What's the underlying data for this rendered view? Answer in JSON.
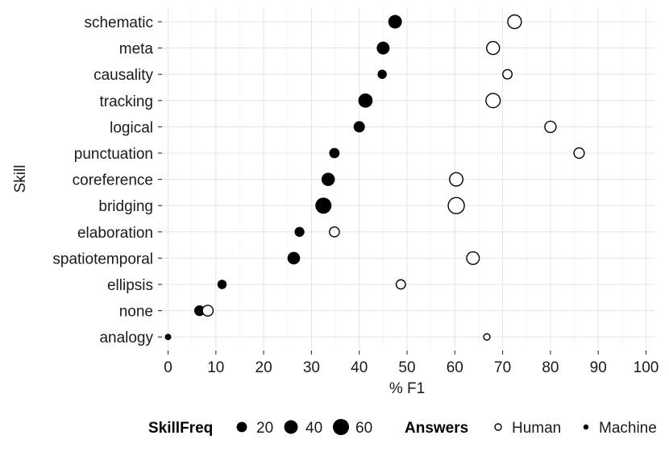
{
  "chart_data": {
    "type": "scatter",
    "xlabel": "% F1",
    "ylabel": "Skill",
    "xlim": [
      0,
      100
    ],
    "x_ticks": [
      0,
      10,
      20,
      30,
      40,
      50,
      60,
      70,
      80,
      90,
      100
    ],
    "categories": [
      "schematic",
      "meta",
      "causality",
      "tracking",
      "logical",
      "punctuation",
      "coreference",
      "bridging",
      "elaboration",
      "spatiotemporal",
      "ellipsis",
      "none",
      "analogy"
    ],
    "skill_freq": [
      40,
      35,
      15,
      45,
      25,
      20,
      38,
      60,
      18,
      33,
      15,
      22,
      5
    ],
    "series": [
      {
        "name": "Human",
        "marker": "open-circle",
        "values": [
          72.5,
          68.0,
          71.0,
          68.0,
          80.0,
          86.0,
          60.3,
          60.3,
          34.8,
          63.8,
          48.7,
          8.3,
          66.7
        ]
      },
      {
        "name": "Machine",
        "marker": "filled-circle",
        "values": [
          47.5,
          45.0,
          44.8,
          41.3,
          40.0,
          34.8,
          33.5,
          32.5,
          27.5,
          26.3,
          11.3,
          6.6,
          0.0
        ]
      }
    ],
    "grid": true,
    "legend_placement": "bottom",
    "legend": {
      "size_title": "SkillFreq",
      "size_entries": [
        {
          "label": "20",
          "value": 20
        },
        {
          "label": "40",
          "value": 40
        },
        {
          "label": "60",
          "value": 60
        }
      ],
      "color_title": "Answers",
      "color_entries": [
        "Human",
        "Machine"
      ]
    }
  }
}
